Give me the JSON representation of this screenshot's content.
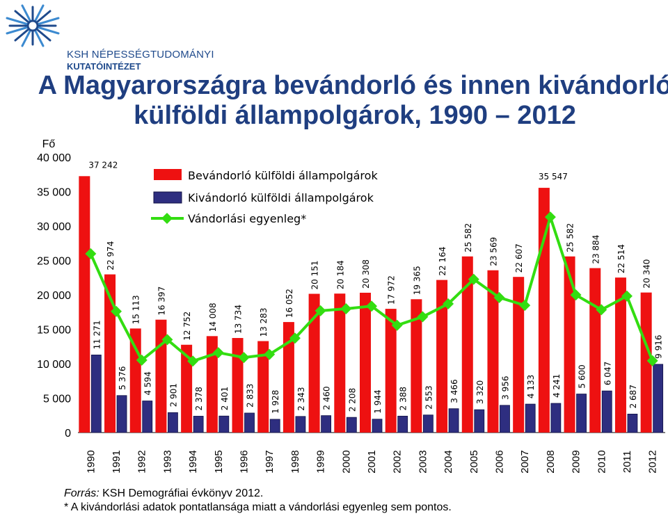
{
  "header": {
    "org_line1": "KSH NÉPESSÉGTUDOMÁNYI",
    "org_line2": "KUTATÓINTÉZET",
    "title_line1": "A Magyarországra bevándorló és innen kivándorló",
    "title_line2": "külföldi állampolgárok, 1990 – 2012"
  },
  "footer": {
    "source_label": "Forrás:",
    "source_text": " KSH Demográfiai évkönyv 2012.",
    "note": "* A kivándorlási adatok pontatlansága miatt a vándorlási egyenleg sem pontos."
  },
  "chart_data": {
    "type": "bar",
    "ylabel": "Fő",
    "ylim": [
      0,
      40000
    ],
    "yticks": [
      0,
      5000,
      10000,
      15000,
      20000,
      25000,
      30000,
      35000,
      40000
    ],
    "ytick_labels": [
      "0",
      "5 000",
      "10 000",
      "15 000",
      "20 000",
      "25 000",
      "30 000",
      "35 000",
      "40 000"
    ],
    "categories": [
      "1990",
      "1991",
      "1992",
      "1993",
      "1994",
      "1995",
      "1996",
      "1997",
      "1998",
      "1999",
      "2000",
      "2001",
      "2002",
      "2003",
      "2004",
      "2005",
      "2006",
      "2007",
      "2008",
      "2009",
      "2010",
      "2011",
      "2012"
    ],
    "series": [
      {
        "name": "Bevándorló külföldi állampolgárok",
        "type": "bar",
        "color": "#ee1111",
        "values": [
          37242,
          22974,
          15113,
          16397,
          12752,
          14008,
          13734,
          13283,
          16052,
          20151,
          20184,
          20308,
          17972,
          19365,
          22164,
          25582,
          23569,
          22607,
          35547,
          25582,
          23884,
          22514,
          20340
        ],
        "labels": [
          "37 242",
          "22 974",
          "15 113",
          "16 397",
          "12 752",
          "14 008",
          "13 734",
          "13 283",
          "16 052",
          "20 151",
          "20 184",
          "20 308",
          "17 972",
          "19 365",
          "22 164",
          "25 582",
          "23 569",
          "22 607",
          "35 547",
          "25 582",
          "23 884",
          "22 514",
          "20 340"
        ]
      },
      {
        "name": "Kivándorló külföldi állampolgárok",
        "type": "bar",
        "color": "#2e2e80",
        "values": [
          11271,
          5376,
          4594,
          2901,
          2378,
          2401,
          2833,
          1928,
          2343,
          2460,
          2208,
          1944,
          2388,
          2553,
          3466,
          3320,
          3956,
          4133,
          4241,
          5600,
          6047,
          2687,
          9916
        ],
        "labels": [
          "11 271",
          "5 376",
          "4 594",
          "2 901",
          "2 378",
          "2 401",
          "2 833",
          "1 928",
          "2 343",
          "2 460",
          "2 208",
          "1 944",
          "2 388",
          "2 553",
          "3 466",
          "3 320",
          "3 956",
          "4 133",
          "4 241",
          "5 600",
          "6 047",
          "2 687",
          "9 916"
        ]
      },
      {
        "name": "Vándorlási egyenleg*",
        "type": "line",
        "color": "#33dd11",
        "values": [
          25971,
          17598,
          10519,
          13496,
          10374,
          11607,
          10901,
          11355,
          13709,
          17691,
          17976,
          18364,
          15584,
          16812,
          18698,
          22262,
          19613,
          18474,
          31306,
          19982,
          17837,
          19827,
          10424
        ]
      }
    ],
    "legend_position": "top-center",
    "grid": false
  }
}
